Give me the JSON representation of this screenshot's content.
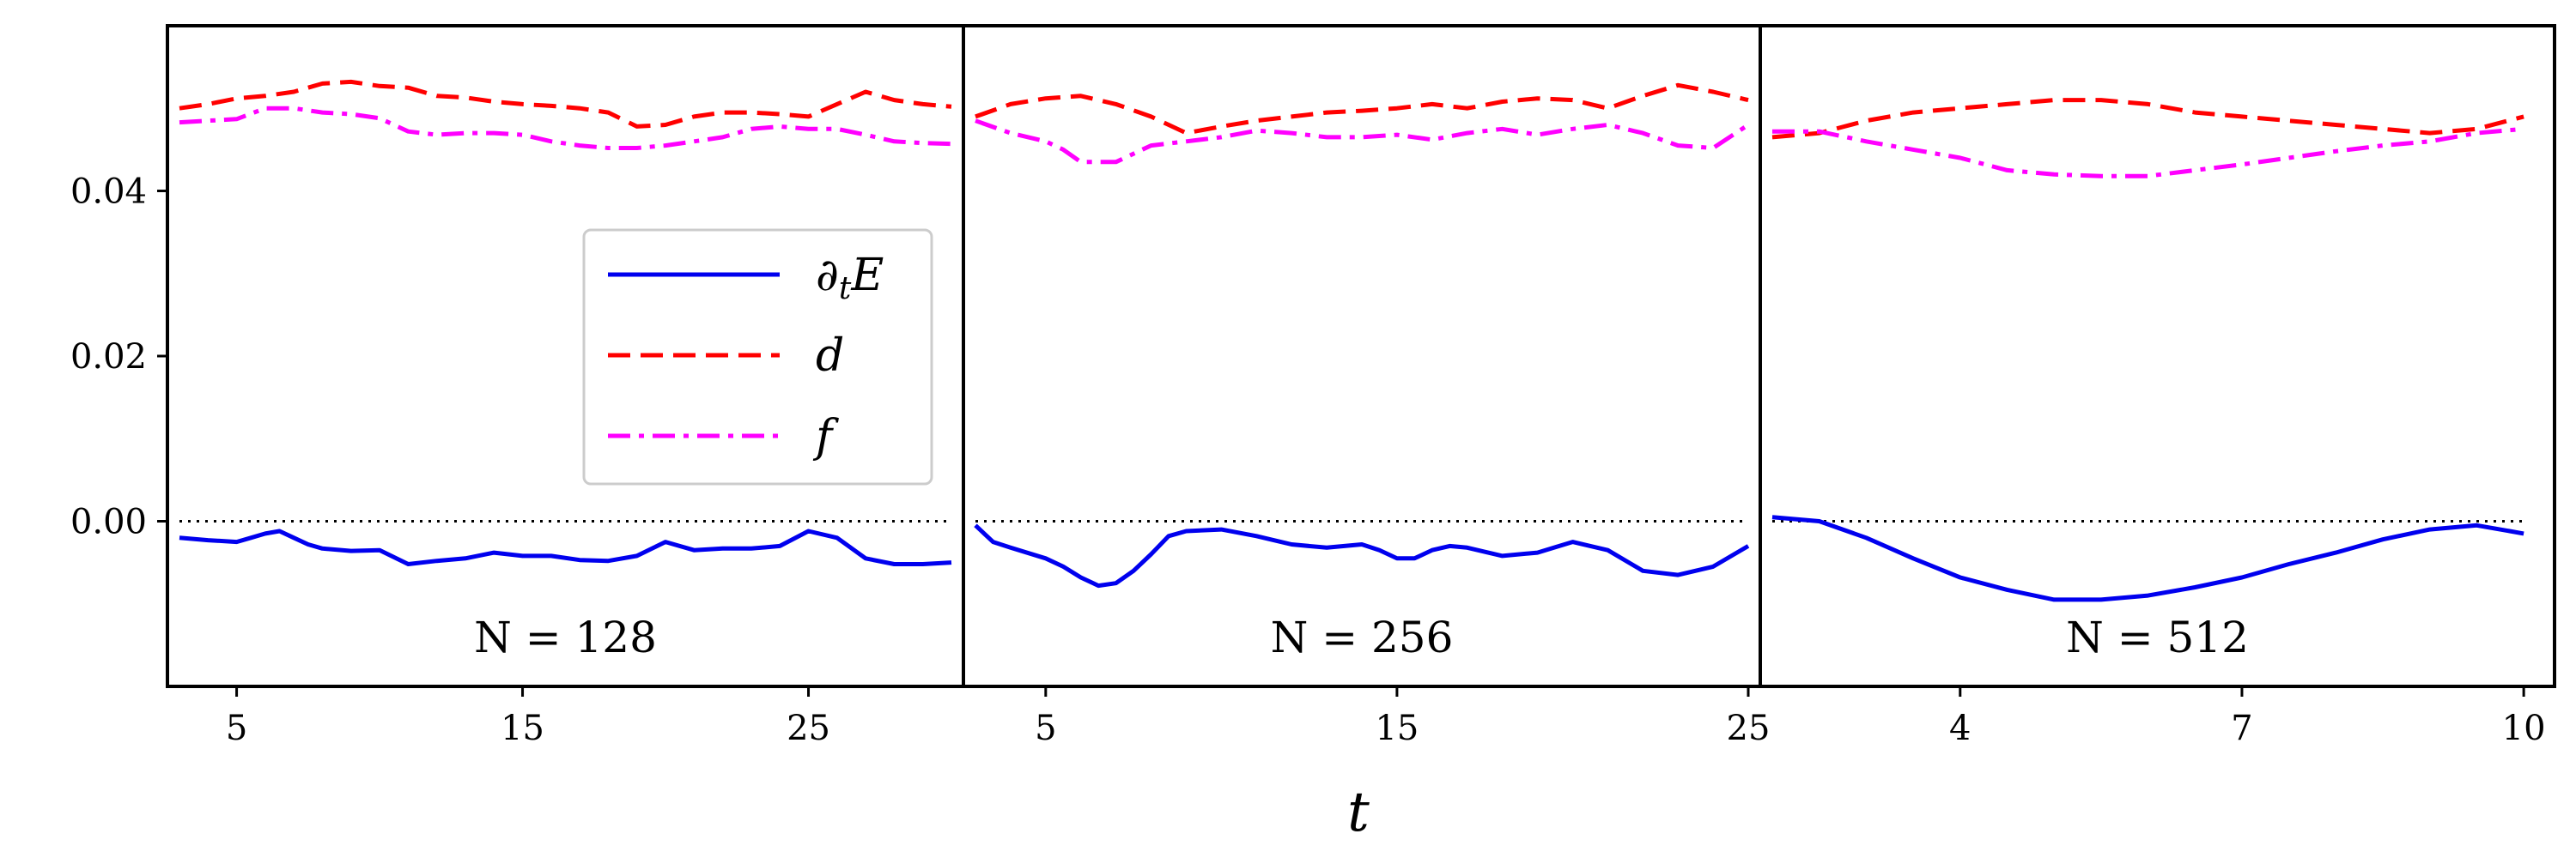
{
  "colors": {
    "dtE": "#0000ee",
    "d": "#ff0000",
    "f": "#ff00ff",
    "zero_line": "#000000",
    "frame": "#000000"
  },
  "chart_data": {
    "type": "line",
    "xlabel": "t",
    "ylim": [
      -0.02,
      0.06
    ],
    "y_ticks": [
      0.0,
      0.02,
      0.04
    ],
    "y_tick_labels": [
      "0.00",
      "0.02",
      "0.04"
    ],
    "zero_line": 0.0,
    "legend": {
      "placement": "center-right of first panel",
      "entries": [
        {
          "key": "dtE",
          "label": "∂_t E",
          "style": "solid"
        },
        {
          "key": "d",
          "label": "d",
          "style": "dashed"
        },
        {
          "key": "f",
          "label": "f",
          "style": "dashdot"
        }
      ]
    },
    "panels": [
      {
        "label": "N = 128",
        "xlim": [
          3.0,
          30.0
        ],
        "x_ticks": [
          5,
          15,
          25
        ],
        "x_tick_labels": [
          "5",
          "15",
          "25"
        ],
        "series": [
          {
            "name": "dtE",
            "style": "solid",
            "x": [
              3.0,
              4.0,
              5.0,
              5.5,
              6.0,
              6.5,
              7.0,
              7.5,
              8.0,
              9.0,
              10.0,
              11.0,
              12.0,
              13.0,
              14.0,
              15.0,
              16.0,
              17.0,
              18.0,
              19.0,
              20.0,
              21.0,
              22.0,
              23.0,
              24.0,
              25.0,
              26.0,
              27.0,
              28.0,
              29.0,
              30.0
            ],
            "y": [
              -0.002,
              -0.0023,
              -0.0025,
              -0.002,
              -0.0015,
              -0.0012,
              -0.002,
              -0.0028,
              -0.0033,
              -0.0036,
              -0.0035,
              -0.0052,
              -0.0048,
              -0.0045,
              -0.0038,
              -0.0042,
              -0.0042,
              -0.0047,
              -0.0048,
              -0.0042,
              -0.0025,
              -0.0035,
              -0.0033,
              -0.0033,
              -0.003,
              -0.0012,
              -0.002,
              -0.0045,
              -0.0052,
              -0.0052,
              -0.005
            ]
          },
          {
            "name": "d",
            "style": "dashed",
            "x": [
              3.0,
              4.0,
              5.0,
              6.0,
              7.0,
              8.0,
              9.0,
              10.0,
              11.0,
              12.0,
              13.0,
              14.0,
              15.0,
              16.0,
              17.0,
              18.0,
              19.0,
              20.0,
              21.0,
              22.0,
              23.0,
              24.0,
              25.0,
              26.0,
              27.0,
              28.0,
              29.0,
              30.0
            ],
            "y": [
              0.05,
              0.0505,
              0.0512,
              0.0515,
              0.052,
              0.053,
              0.0532,
              0.0527,
              0.0525,
              0.0515,
              0.0513,
              0.0508,
              0.0505,
              0.0503,
              0.05,
              0.0495,
              0.0478,
              0.048,
              0.049,
              0.0495,
              0.0495,
              0.0493,
              0.049,
              0.0505,
              0.052,
              0.051,
              0.0505,
              0.0502
            ]
          },
          {
            "name": "f",
            "style": "dashdot",
            "x": [
              3.0,
              4.0,
              5.0,
              6.0,
              7.0,
              8.0,
              9.0,
              10.0,
              11.0,
              12.0,
              13.0,
              14.0,
              15.0,
              16.0,
              17.0,
              18.0,
              19.0,
              20.0,
              21.0,
              22.0,
              23.0,
              24.0,
              25.0,
              26.0,
              27.0,
              28.0,
              29.0,
              30.0
            ],
            "y": [
              0.0483,
              0.0485,
              0.0487,
              0.05,
              0.05,
              0.0495,
              0.0493,
              0.0488,
              0.0472,
              0.0468,
              0.047,
              0.047,
              0.0468,
              0.046,
              0.0455,
              0.0452,
              0.0452,
              0.0455,
              0.046,
              0.0465,
              0.0475,
              0.0478,
              0.0475,
              0.0475,
              0.0468,
              0.046,
              0.0458,
              0.0457
            ]
          }
        ]
      },
      {
        "label": "N = 256",
        "xlim": [
          3.0,
          25.0
        ],
        "x_ticks": [
          5,
          15,
          25
        ],
        "x_tick_labels": [
          "5",
          "15",
          "25"
        ],
        "series": [
          {
            "name": "dtE",
            "style": "solid",
            "x": [
              3.0,
              3.5,
              4.0,
              5.0,
              5.5,
              6.0,
              6.5,
              7.0,
              7.5,
              8.0,
              8.5,
              9.0,
              10.0,
              11.0,
              12.0,
              13.0,
              14.0,
              14.5,
              15.0,
              15.5,
              16.0,
              16.5,
              17.0,
              18.0,
              19.0,
              20.0,
              21.0,
              22.0,
              23.0,
              24.0,
              25.0
            ],
            "y": [
              -0.0005,
              -0.0025,
              -0.0032,
              -0.0045,
              -0.0055,
              -0.0068,
              -0.0078,
              -0.0075,
              -0.006,
              -0.004,
              -0.0018,
              -0.0012,
              -0.001,
              -0.0018,
              -0.0028,
              -0.0032,
              -0.0028,
              -0.0035,
              -0.0045,
              -0.0045,
              -0.0035,
              -0.003,
              -0.0032,
              -0.0042,
              -0.0038,
              -0.0025,
              -0.0035,
              -0.006,
              -0.0065,
              -0.0055,
              -0.003
            ]
          },
          {
            "name": "d",
            "style": "dashed",
            "x": [
              3.0,
              4.0,
              5.0,
              6.0,
              7.0,
              8.0,
              9.0,
              10.0,
              11.0,
              12.0,
              13.0,
              14.0,
              15.0,
              16.0,
              17.0,
              18.0,
              19.0,
              20.0,
              21.0,
              22.0,
              23.0,
              24.0,
              25.0
            ],
            "y": [
              0.049,
              0.0505,
              0.0512,
              0.0515,
              0.0505,
              0.049,
              0.047,
              0.0478,
              0.0485,
              0.049,
              0.0495,
              0.0497,
              0.05,
              0.0505,
              0.05,
              0.0508,
              0.0512,
              0.051,
              0.05,
              0.0515,
              0.0528,
              0.052,
              0.051
            ]
          },
          {
            "name": "f",
            "style": "dashdot",
            "x": [
              3.0,
              4.0,
              5.0,
              5.5,
              6.0,
              7.0,
              8.0,
              9.0,
              10.0,
              11.0,
              12.0,
              13.0,
              14.0,
              15.0,
              16.0,
              17.0,
              18.0,
              19.0,
              20.0,
              21.0,
              22.0,
              23.0,
              24.0,
              25.0
            ],
            "y": [
              0.0485,
              0.047,
              0.046,
              0.045,
              0.0435,
              0.0435,
              0.0455,
              0.046,
              0.0465,
              0.0473,
              0.047,
              0.0465,
              0.0465,
              0.0468,
              0.0462,
              0.047,
              0.0475,
              0.0468,
              0.0475,
              0.048,
              0.047,
              0.0455,
              0.0452,
              0.048
            ]
          }
        ]
      },
      {
        "label": "N = 512",
        "xlim": [
          2.0,
          10.2
        ],
        "x_ticks": [
          4,
          7,
          10
        ],
        "x_tick_labels": [
          "4",
          "7",
          "10"
        ],
        "series": [
          {
            "name": "dtE",
            "style": "solid",
            "x": [
              2.0,
              2.5,
              3.0,
              3.5,
              4.0,
              4.5,
              5.0,
              5.5,
              6.0,
              6.5,
              7.0,
              7.5,
              8.0,
              8.5,
              9.0,
              9.5,
              10.0
            ],
            "y": [
              0.0005,
              0.0,
              -0.002,
              -0.0045,
              -0.0068,
              -0.0083,
              -0.0095,
              -0.0095,
              -0.009,
              -0.008,
              -0.0068,
              -0.0052,
              -0.0038,
              -0.0022,
              -0.001,
              -0.0005,
              -0.0015
            ]
          },
          {
            "name": "d",
            "style": "dashed",
            "x": [
              2.0,
              2.5,
              3.0,
              3.5,
              4.0,
              4.5,
              5.0,
              5.5,
              6.0,
              6.5,
              7.0,
              7.5,
              8.0,
              8.5,
              9.0,
              9.5,
              10.0
            ],
            "y": [
              0.0465,
              0.047,
              0.0485,
              0.0495,
              0.05,
              0.0505,
              0.051,
              0.051,
              0.0505,
              0.0495,
              0.049,
              0.0485,
              0.048,
              0.0475,
              0.047,
              0.0475,
              0.049
            ]
          },
          {
            "name": "f",
            "style": "dashdot",
            "x": [
              2.0,
              2.5,
              3.0,
              3.5,
              4.0,
              4.5,
              5.0,
              5.5,
              6.0,
              6.5,
              7.0,
              7.5,
              8.0,
              8.5,
              9.0,
              9.5,
              10.0
            ],
            "y": [
              0.0472,
              0.0472,
              0.046,
              0.045,
              0.044,
              0.0425,
              0.042,
              0.0418,
              0.0418,
              0.0425,
              0.0432,
              0.044,
              0.0448,
              0.0455,
              0.046,
              0.047,
              0.0475
            ]
          }
        ]
      }
    ]
  }
}
